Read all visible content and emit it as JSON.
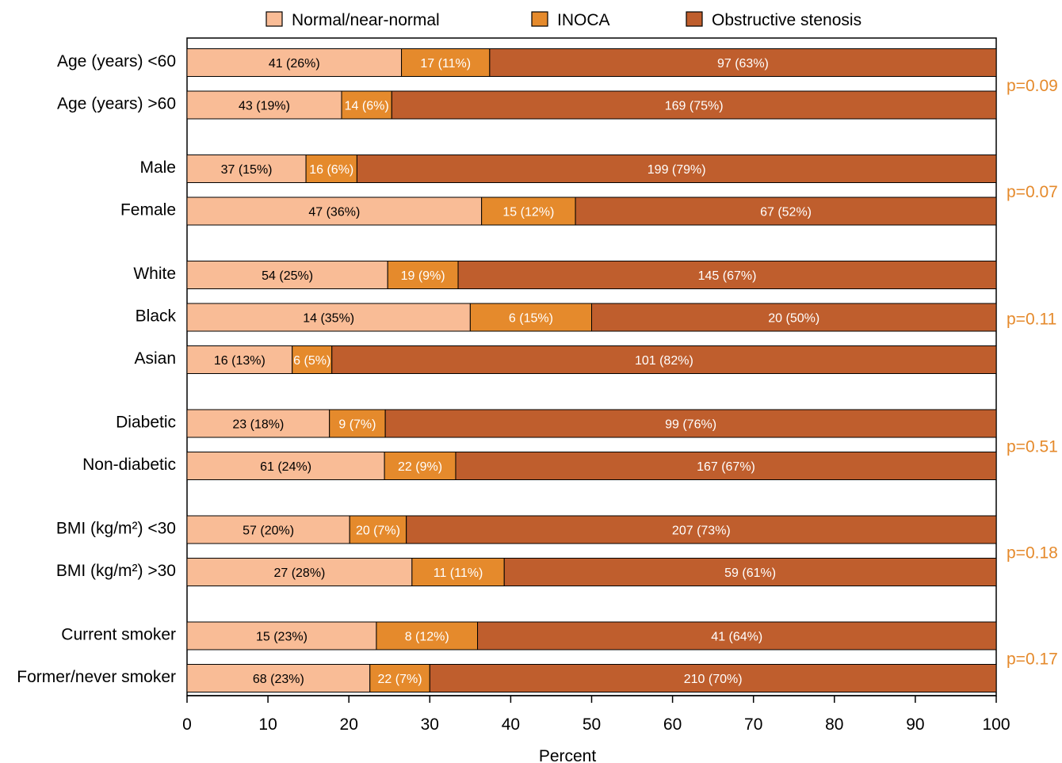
{
  "chart_data": {
    "type": "bar",
    "orientation": "horizontal",
    "stacked": true,
    "xlabel": "Percent",
    "xlim": [
      0,
      100
    ],
    "xticks": [
      0,
      10,
      20,
      30,
      40,
      50,
      60,
      70,
      80,
      90,
      100
    ],
    "grid": false,
    "legend_position": "top",
    "series": [
      {
        "name": "Normal/near-normal",
        "color": "#F9BC96",
        "label_color": "#000000"
      },
      {
        "name": "INOCA",
        "color": "#E58A2C",
        "label_color": "#FFFFFF"
      },
      {
        "name": "Obstructive stenosis",
        "color": "#BF5E2D",
        "label_color": "#FFFFFF"
      }
    ],
    "groups": [
      {
        "p_value": "p=0.09",
        "bars": [
          {
            "category": "Age (years) <60",
            "values": [
              26.5,
              10.9,
              62.6
            ],
            "labels": [
              "41 (26%)",
              "17 (11%)",
              "97 (63%)"
            ]
          },
          {
            "category": "Age (years) >60",
            "values": [
              19.1,
              6.2,
              74.7
            ],
            "labels": [
              "43 (19%)",
              "14 (6%)",
              "169 (75%)"
            ]
          }
        ]
      },
      {
        "p_value": "p=0.07",
        "bars": [
          {
            "category": "Male",
            "values": [
              14.7,
              6.3,
              79.0
            ],
            "labels": [
              "37 (15%)",
              "16 (6%)",
              "199 (79%)"
            ]
          },
          {
            "category": "Female",
            "values": [
              36.4,
              11.6,
              52.0
            ],
            "labels": [
              "47 (36%)",
              "15 (12%)",
              "67 (52%)"
            ]
          }
        ]
      },
      {
        "p_value": "p=0.11",
        "bars": [
          {
            "category": "White",
            "values": [
              24.8,
              8.7,
              66.5
            ],
            "labels": [
              "54 (25%)",
              "19 (9%)",
              "145 (67%)"
            ]
          },
          {
            "category": "Black",
            "values": [
              35.0,
              15.0,
              50.0
            ],
            "labels": [
              "14 (35%)",
              "6 (15%)",
              "20 (50%)"
            ]
          },
          {
            "category": "Asian",
            "values": [
              13.0,
              4.9,
              82.1
            ],
            "labels": [
              "16 (13%)",
              "6 (5%)",
              "101 (82%)"
            ]
          }
        ]
      },
      {
        "p_value": "p=0.51",
        "bars": [
          {
            "category": "Diabetic",
            "values": [
              17.6,
              6.9,
              75.5
            ],
            "labels": [
              "23 (18%)",
              "9 (7%)",
              "99 (76%)"
            ]
          },
          {
            "category": "Non-diabetic",
            "values": [
              24.4,
              8.8,
              66.8
            ],
            "labels": [
              "61 (24%)",
              "22 (9%)",
              "167 (67%)"
            ]
          }
        ]
      },
      {
        "p_value": "p=0.18",
        "bars": [
          {
            "category": "BMI (kg/m²) <30",
            "values": [
              20.1,
              7.0,
              72.9
            ],
            "labels": [
              "57 (20%)",
              "20 (7%)",
              "207 (73%)"
            ]
          },
          {
            "category": "BMI (kg/m²) >30",
            "values": [
              27.8,
              11.4,
              60.8
            ],
            "labels": [
              "27 (28%)",
              "11 (11%)",
              "59 (61%)"
            ]
          }
        ]
      },
      {
        "p_value": "p=0.17",
        "bars": [
          {
            "category": "Current smoker",
            "values": [
              23.4,
              12.5,
              64.1
            ],
            "labels": [
              "15 (23%)",
              "8 (12%)",
              "41 (64%)"
            ]
          },
          {
            "category": "Former/never smoker",
            "values": [
              22.6,
              7.4,
              70.0
            ],
            "labels": [
              "68 (23%)",
              "22 (7%)",
              "210 (70%)"
            ]
          }
        ]
      }
    ]
  }
}
